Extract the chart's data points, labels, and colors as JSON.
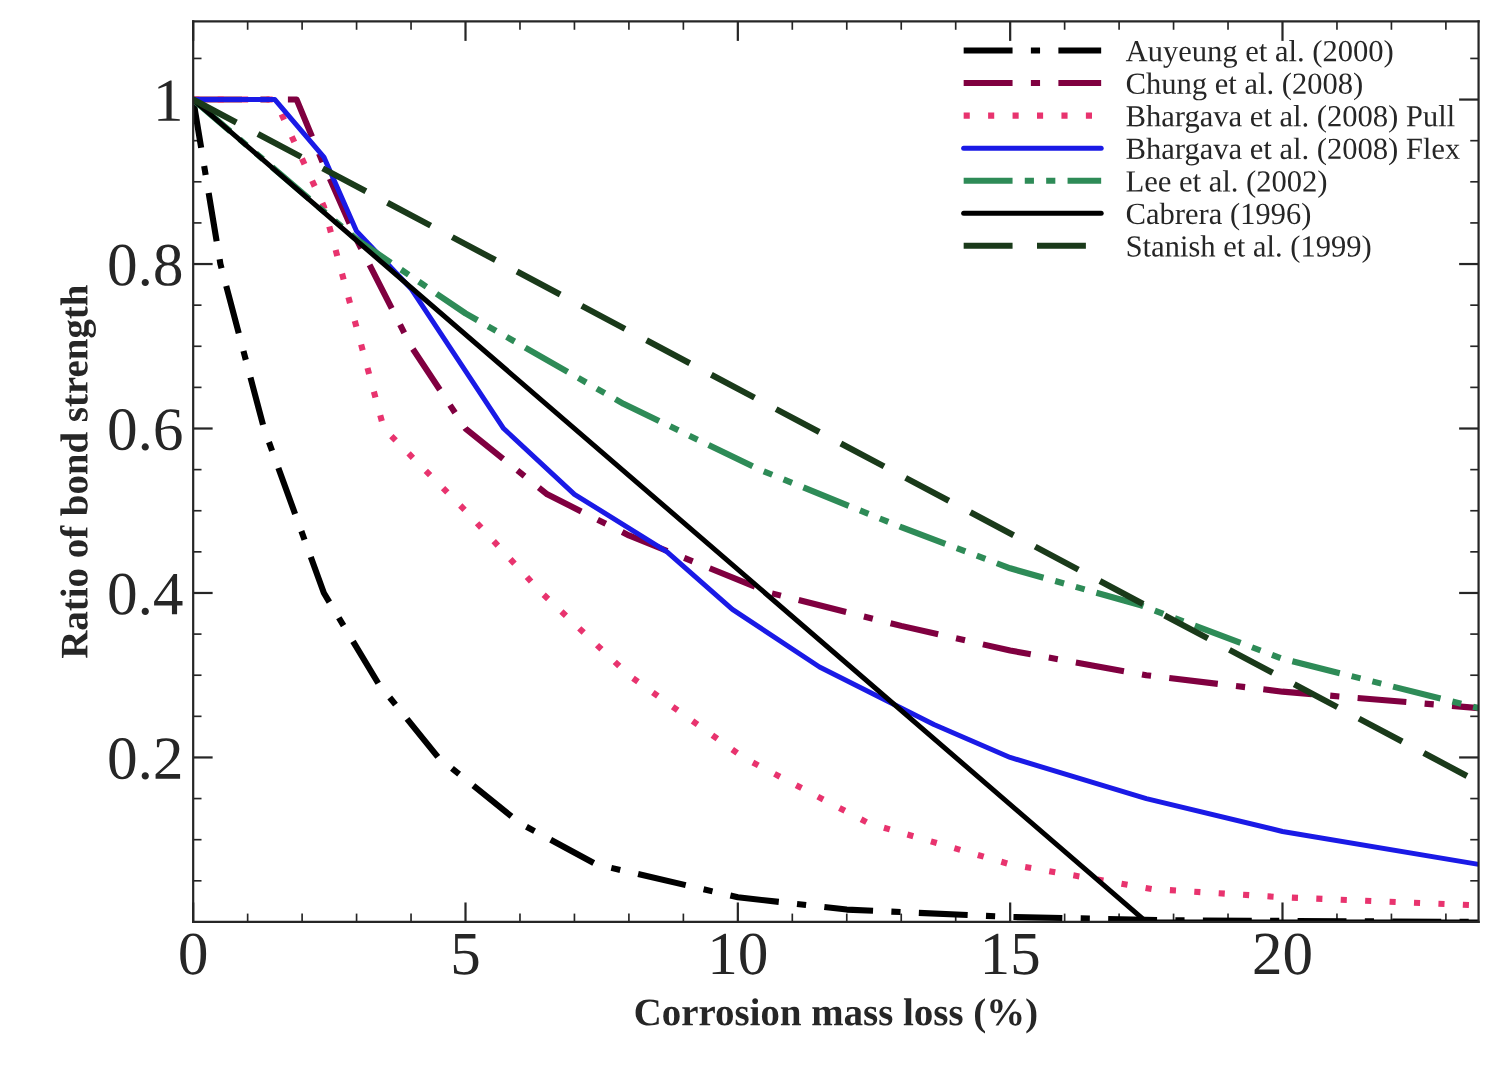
{
  "chart_data": {
    "type": "line",
    "xlabel": "Corrosion mass loss (%)",
    "ylabel": "Ratio of bond strength",
    "xlim": [
      0,
      23.6
    ],
    "ylim": [
      0,
      1.095
    ],
    "xticks": [
      0,
      5,
      10,
      15,
      20
    ],
    "yticks": [
      0.2,
      0.4,
      0.6,
      0.8,
      1
    ],
    "grid": false,
    "legend": "top right",
    "marker": "none",
    "series": [
      {
        "name": "Auyeung et al. (2000)",
        "color": "#000000",
        "line_style": "dashdot",
        "x": [
          0,
          0.5,
          1.3,
          2.4,
          3.4,
          4.5,
          6,
          7.4,
          10,
          12,
          15,
          18,
          23.6
        ],
        "values": [
          1,
          0.8,
          0.6,
          0.4,
          0.29,
          0.2,
          0.12,
          0.07,
          0.03,
          0.015,
          0.006,
          0.002,
          0
        ]
      },
      {
        "name": "Chung et al. (2008)",
        "color": "#800040",
        "line_style": "dashdot",
        "x": [
          0,
          1.9,
          2.4,
          3,
          4,
          5,
          6.5,
          8,
          10.6,
          13,
          15,
          17.5,
          20,
          23.6
        ],
        "values": [
          1,
          1,
          0.92,
          0.83,
          0.7,
          0.6,
          0.52,
          0.47,
          0.4,
          0.36,
          0.33,
          0.3,
          0.28,
          0.26
        ]
      },
      {
        "name": "Bhargava et al. (2008) Pull",
        "color": "#e8336e",
        "line_style": "dotted",
        "x": [
          0,
          1.5,
          2.4,
          3.5,
          5,
          6.4,
          8,
          10.1,
          12.4,
          15,
          17.6,
          20,
          23.6
        ],
        "values": [
          1,
          1,
          0.87,
          0.6,
          0.5,
          0.4,
          0.3,
          0.2,
          0.12,
          0.07,
          0.04,
          0.03,
          0.02
        ]
      },
      {
        "name": "Bhargava et al. (2008) Flex",
        "color": "#1a1ae6",
        "line_style": "solid",
        "x": [
          0,
          1.5,
          2.4,
          3,
          4,
          5.7,
          7,
          8.7,
          9.9,
          11.5,
          13.6,
          15,
          17.5,
          20,
          23.6
        ],
        "values": [
          1,
          1,
          0.93,
          0.84,
          0.77,
          0.6,
          0.52,
          0.45,
          0.38,
          0.31,
          0.24,
          0.2,
          0.15,
          0.11,
          0.07
        ]
      },
      {
        "name": "Lee et al. (2002)",
        "color": "#2e8b57",
        "line_style": "dashdotdot",
        "x": [
          0,
          3,
          5,
          7.9,
          10.4,
          13,
          15,
          17.4,
          20,
          23.6
        ],
        "values": [
          1,
          0.83,
          0.74,
          0.63,
          0.55,
          0.48,
          0.43,
          0.385,
          0.32,
          0.26
        ]
      },
      {
        "name": "Cabrera (1996)",
        "color": "#000000",
        "line_style": "solid",
        "x": [
          0,
          17.5,
          23.6
        ],
        "values": [
          1,
          0,
          0
        ]
      },
      {
        "name": "Stanish et al. (1999)",
        "color": "#1a3a1a",
        "line_style": "dashed",
        "x": [
          0,
          23.6
        ],
        "values": [
          1,
          0.17
        ]
      }
    ]
  }
}
